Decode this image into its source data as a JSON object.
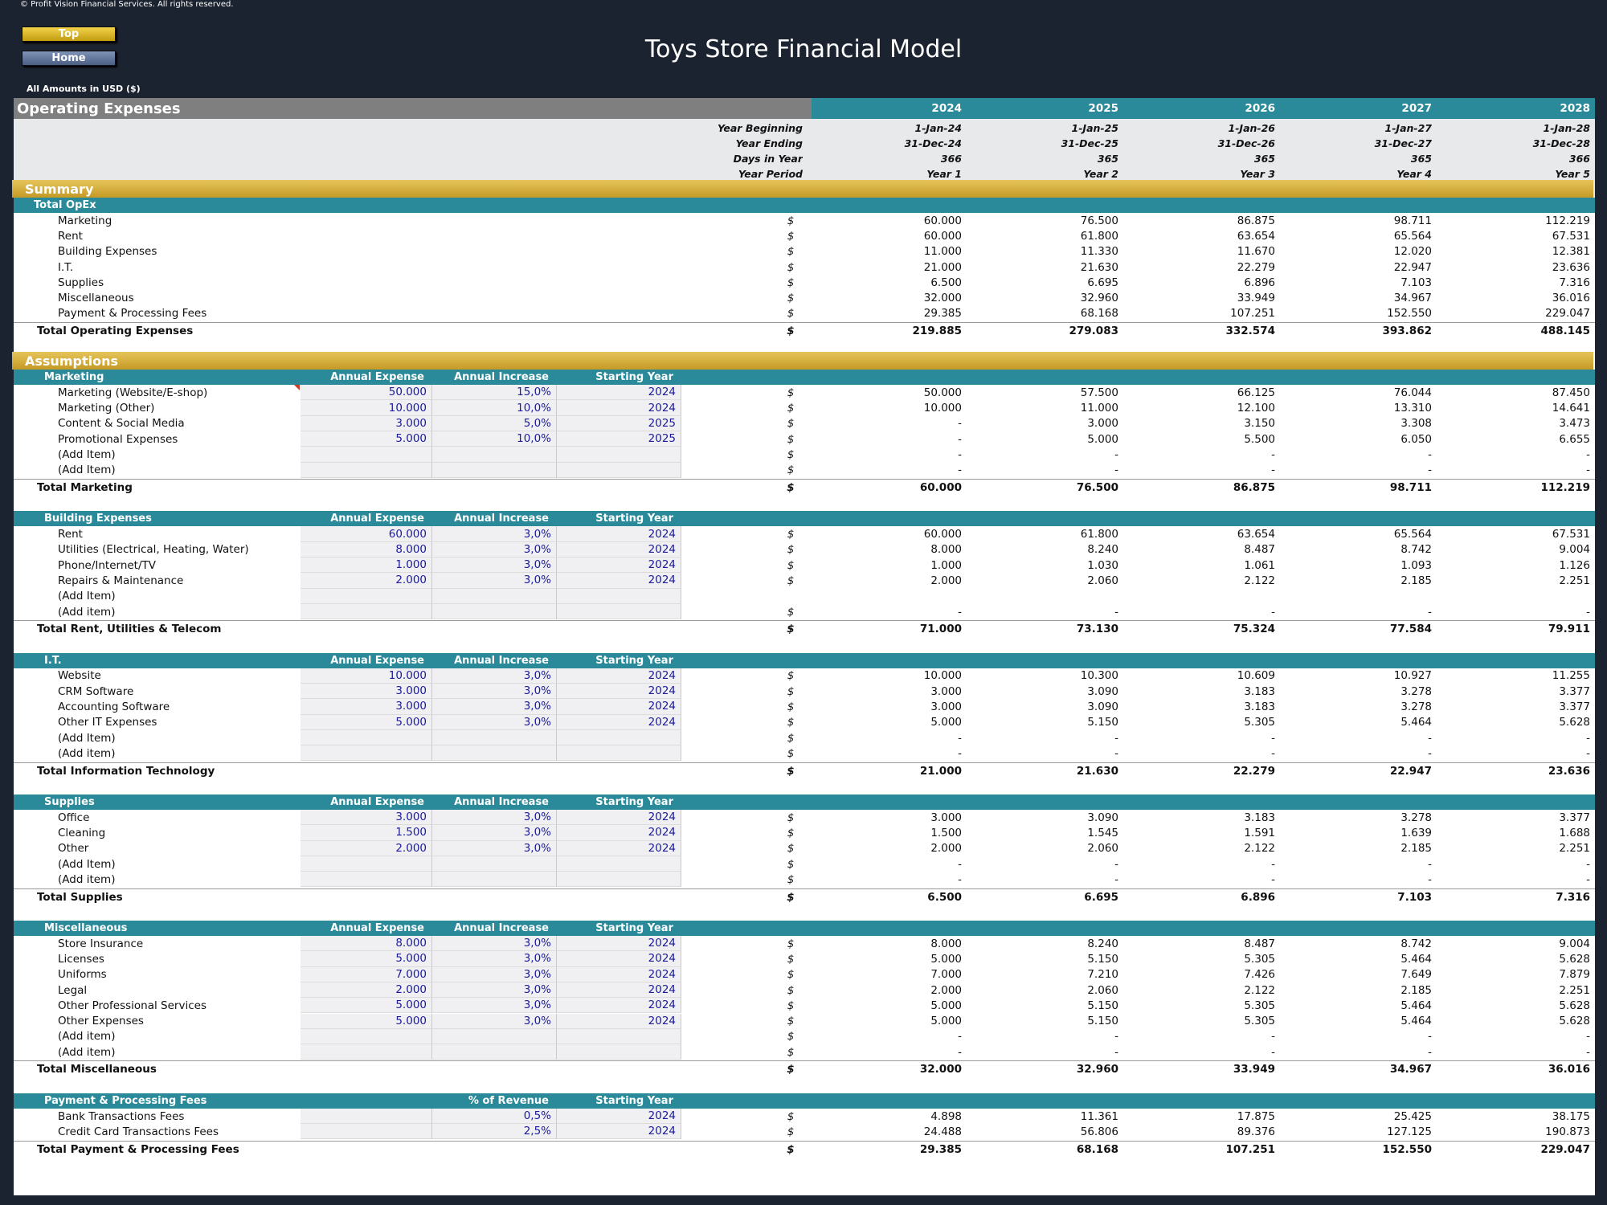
{
  "header": {
    "copyright": "© Profit Vision Financial Services. All rights reserved.",
    "top_button": "Top",
    "home_button": "Home",
    "app_title": "Toys Store Financial Model",
    "amounts_note": "All Amounts in  USD ($)"
  },
  "sheet": {
    "title": "Operating Expenses",
    "years": [
      "2024",
      "2025",
      "2026",
      "2027",
      "2028"
    ],
    "meta": [
      {
        "label": "Year Beginning",
        "values": [
          "1-Jan-24",
          "1-Jan-25",
          "1-Jan-26",
          "1-Jan-27",
          "1-Jan-28"
        ]
      },
      {
        "label": "Year Ending",
        "values": [
          "31-Dec-24",
          "31-Dec-25",
          "31-Dec-26",
          "31-Dec-27",
          "31-Dec-28"
        ]
      },
      {
        "label": "Days in Year",
        "values": [
          "366",
          "365",
          "365",
          "365",
          "366"
        ]
      },
      {
        "label": "Year Period",
        "values": [
          "Year 1",
          "Year 2",
          "Year 3",
          "Year 4",
          "Year 5"
        ]
      }
    ],
    "currency": "$"
  },
  "summary": {
    "title": "Summary",
    "group_title": "Total OpEx",
    "items": [
      {
        "label": "Marketing",
        "values": [
          "60.000",
          "76.500",
          "86.875",
          "98.711",
          "112.219"
        ]
      },
      {
        "label": "Rent",
        "values": [
          "60.000",
          "61.800",
          "63.654",
          "65.564",
          "67.531"
        ]
      },
      {
        "label": "Building Expenses",
        "values": [
          "11.000",
          "11.330",
          "11.670",
          "12.020",
          "12.381"
        ]
      },
      {
        "label": "I.T.",
        "values": [
          "21.000",
          "21.630",
          "22.279",
          "22.947",
          "23.636"
        ]
      },
      {
        "label": "Supplies",
        "values": [
          "6.500",
          "6.695",
          "6.896",
          "7.103",
          "7.316"
        ]
      },
      {
        "label": "Miscellaneous",
        "values": [
          "32.000",
          "32.960",
          "33.949",
          "34.967",
          "36.016"
        ]
      },
      {
        "label": "Payment & Processing Fees",
        "values": [
          "29.385",
          "68.168",
          "107.251",
          "152.550",
          "229.047"
        ]
      }
    ],
    "total": {
      "label": "Total Operating Expenses",
      "values": [
        "219.885",
        "279.083",
        "332.574",
        "393.862",
        "488.145"
      ]
    }
  },
  "assumptions": {
    "title": "Assumptions",
    "groups": [
      {
        "title": "Marketing",
        "col_headers": [
          "Annual Expense",
          "Annual Increase",
          "Starting Year"
        ],
        "items": [
          {
            "label": "Marketing (Website/E-shop)",
            "inputs": [
              "50.000",
              "15,0%",
              "2024"
            ],
            "values": [
              "50.000",
              "57.500",
              "66.125",
              "76.044",
              "87.450"
            ]
          },
          {
            "label": "Marketing (Other)",
            "inputs": [
              "10.000",
              "10,0%",
              "2024"
            ],
            "values": [
              "10.000",
              "11.000",
              "12.100",
              "13.310",
              "14.641"
            ]
          },
          {
            "label": "Content & Social Media",
            "inputs": [
              "3.000",
              "5,0%",
              "2025"
            ],
            "values": [
              "-",
              "3.000",
              "3.150",
              "3.308",
              "3.473"
            ]
          },
          {
            "label": "Promotional Expenses",
            "inputs": [
              "5.000",
              "10,0%",
              "2025"
            ],
            "values": [
              "-",
              "5.000",
              "5.500",
              "6.050",
              "6.655"
            ]
          },
          {
            "label": "(Add Item)",
            "inputs": [
              "",
              "",
              ""
            ],
            "values": [
              "-",
              "-",
              "-",
              "-",
              "-"
            ]
          },
          {
            "label": "(Add Item)",
            "inputs": [
              "",
              "",
              ""
            ],
            "values": [
              "-",
              "-",
              "-",
              "-",
              "-"
            ]
          }
        ],
        "total": {
          "label": "Total Marketing",
          "values": [
            "60.000",
            "76.500",
            "86.875",
            "98.711",
            "112.219"
          ]
        }
      },
      {
        "title": "Building Expenses",
        "col_headers": [
          "Annual Expense",
          "Annual Increase",
          "Starting Year"
        ],
        "items": [
          {
            "label": "Rent",
            "inputs": [
              "60.000",
              "3,0%",
              "2024"
            ],
            "values": [
              "60.000",
              "61.800",
              "63.654",
              "65.564",
              "67.531"
            ]
          },
          {
            "label": "Utilities (Electrical, Heating, Water)",
            "inputs": [
              "8.000",
              "3,0%",
              "2024"
            ],
            "values": [
              "8.000",
              "8.240",
              "8.487",
              "8.742",
              "9.004"
            ]
          },
          {
            "label": "Phone/Internet/TV",
            "inputs": [
              "1.000",
              "3,0%",
              "2024"
            ],
            "values": [
              "1.000",
              "1.030",
              "1.061",
              "1.093",
              "1.126"
            ]
          },
          {
            "label": "Repairs & Maintenance",
            "inputs": [
              "2.000",
              "3,0%",
              "2024"
            ],
            "values": [
              "2.000",
              "2.060",
              "2.122",
              "2.185",
              "2.251"
            ]
          },
          {
            "label": "(Add Item)",
            "inputs": [
              "",
              "",
              ""
            ],
            "values": null
          },
          {
            "label": "(Add item)",
            "inputs": [
              "",
              "",
              ""
            ],
            "values": [
              "-",
              "-",
              "-",
              "-",
              "-"
            ]
          }
        ],
        "total": {
          "label": "Total Rent, Utilities & Telecom",
          "values": [
            "71.000",
            "73.130",
            "75.324",
            "77.584",
            "79.911"
          ]
        }
      },
      {
        "title": "I.T.",
        "col_headers": [
          "Annual Expense",
          "Annual Increase",
          "Starting Year"
        ],
        "items": [
          {
            "label": "Website",
            "inputs": [
              "10.000",
              "3,0%",
              "2024"
            ],
            "values": [
              "10.000",
              "10.300",
              "10.609",
              "10.927",
              "11.255"
            ]
          },
          {
            "label": "CRM Software",
            "inputs": [
              "3.000",
              "3,0%",
              "2024"
            ],
            "values": [
              "3.000",
              "3.090",
              "3.183",
              "3.278",
              "3.377"
            ]
          },
          {
            "label": "Accounting Software",
            "inputs": [
              "3.000",
              "3,0%",
              "2024"
            ],
            "values": [
              "3.000",
              "3.090",
              "3.183",
              "3.278",
              "3.377"
            ]
          },
          {
            "label": "Other IT Expenses",
            "inputs": [
              "5.000",
              "3,0%",
              "2024"
            ],
            "values": [
              "5.000",
              "5.150",
              "5.305",
              "5.464",
              "5.628"
            ]
          },
          {
            "label": "(Add Item)",
            "inputs": [
              "",
              "",
              ""
            ],
            "values": [
              "-",
              "-",
              "-",
              "-",
              "-"
            ]
          },
          {
            "label": "(Add item)",
            "inputs": [
              "",
              "",
              ""
            ],
            "values": [
              "-",
              "-",
              "-",
              "-",
              "-"
            ]
          }
        ],
        "total": {
          "label": "Total Information Technology",
          "values": [
            "21.000",
            "21.630",
            "22.279",
            "22.947",
            "23.636"
          ]
        }
      },
      {
        "title": "Supplies",
        "col_headers": [
          "Annual Expense",
          "Annual Increase",
          "Starting Year"
        ],
        "items": [
          {
            "label": "Office",
            "inputs": [
              "3.000",
              "3,0%",
              "2024"
            ],
            "values": [
              "3.000",
              "3.090",
              "3.183",
              "3.278",
              "3.377"
            ]
          },
          {
            "label": "Cleaning",
            "inputs": [
              "1.500",
              "3,0%",
              "2024"
            ],
            "values": [
              "1.500",
              "1.545",
              "1.591",
              "1.639",
              "1.688"
            ]
          },
          {
            "label": "Other",
            "inputs": [
              "2.000",
              "3,0%",
              "2024"
            ],
            "values": [
              "2.000",
              "2.060",
              "2.122",
              "2.185",
              "2.251"
            ]
          },
          {
            "label": "(Add Item)",
            "inputs": [
              "",
              "",
              ""
            ],
            "values": [
              "-",
              "-",
              "-",
              "-",
              "-"
            ]
          },
          {
            "label": "(Add item)",
            "inputs": [
              "",
              "",
              ""
            ],
            "values": [
              "-",
              "-",
              "-",
              "-",
              "-"
            ]
          }
        ],
        "total": {
          "label": "Total Supplies",
          "values": [
            "6.500",
            "6.695",
            "6.896",
            "7.103",
            "7.316"
          ]
        }
      },
      {
        "title": "Miscellaneous",
        "col_headers": [
          "Annual Expense",
          "Annual Increase",
          "Starting Year"
        ],
        "items": [
          {
            "label": "Store Insurance",
            "inputs": [
              "8.000",
              "3,0%",
              "2024"
            ],
            "values": [
              "8.000",
              "8.240",
              "8.487",
              "8.742",
              "9.004"
            ]
          },
          {
            "label": "Licenses",
            "inputs": [
              "5.000",
              "3,0%",
              "2024"
            ],
            "values": [
              "5.000",
              "5.150",
              "5.305",
              "5.464",
              "5.628"
            ]
          },
          {
            "label": "Uniforms",
            "inputs": [
              "7.000",
              "3,0%",
              "2024"
            ],
            "values": [
              "7.000",
              "7.210",
              "7.426",
              "7.649",
              "7.879"
            ]
          },
          {
            "label": "Legal",
            "inputs": [
              "2.000",
              "3,0%",
              "2024"
            ],
            "values": [
              "2.000",
              "2.060",
              "2.122",
              "2.185",
              "2.251"
            ]
          },
          {
            "label": "Other Professional Services",
            "inputs": [
              "5.000",
              "3,0%",
              "2024"
            ],
            "values": [
              "5.000",
              "5.150",
              "5.305",
              "5.464",
              "5.628"
            ]
          },
          {
            "label": "Other Expenses",
            "inputs": [
              "5.000",
              "3,0%",
              "2024"
            ],
            "values": [
              "5.000",
              "5.150",
              "5.305",
              "5.464",
              "5.628"
            ]
          },
          {
            "label": "(Add item)",
            "inputs": [
              "",
              "",
              ""
            ],
            "values": [
              "-",
              "-",
              "-",
              "-",
              "-"
            ]
          },
          {
            "label": "(Add item)",
            "inputs": [
              "",
              "",
              ""
            ],
            "values": [
              "-",
              "-",
              "-",
              "-",
              "-"
            ]
          }
        ],
        "total": {
          "label": "Total Miscellaneous",
          "values": [
            "32.000",
            "32.960",
            "33.949",
            "34.967",
            "36.016"
          ]
        }
      },
      {
        "title": "Payment & Processing Fees",
        "col_headers": [
          "",
          "% of Revenue",
          "Starting Year"
        ],
        "items": [
          {
            "label": "Bank Transactions Fees",
            "inputs": [
              "",
              "0,5%",
              "2024"
            ],
            "values": [
              "4.898",
              "11.361",
              "17.875",
              "25.425",
              "38.175"
            ]
          },
          {
            "label": "Credit Card Transactions Fees",
            "inputs": [
              "",
              "2,5%",
              "2024"
            ],
            "values": [
              "24.488",
              "56.806",
              "89.376",
              "127.125",
              "190.873"
            ]
          }
        ],
        "total": {
          "label": "Total Payment & Processing Fees",
          "values": [
            "29.385",
            "68.168",
            "107.251",
            "152.550",
            "229.047"
          ]
        }
      }
    ]
  }
}
